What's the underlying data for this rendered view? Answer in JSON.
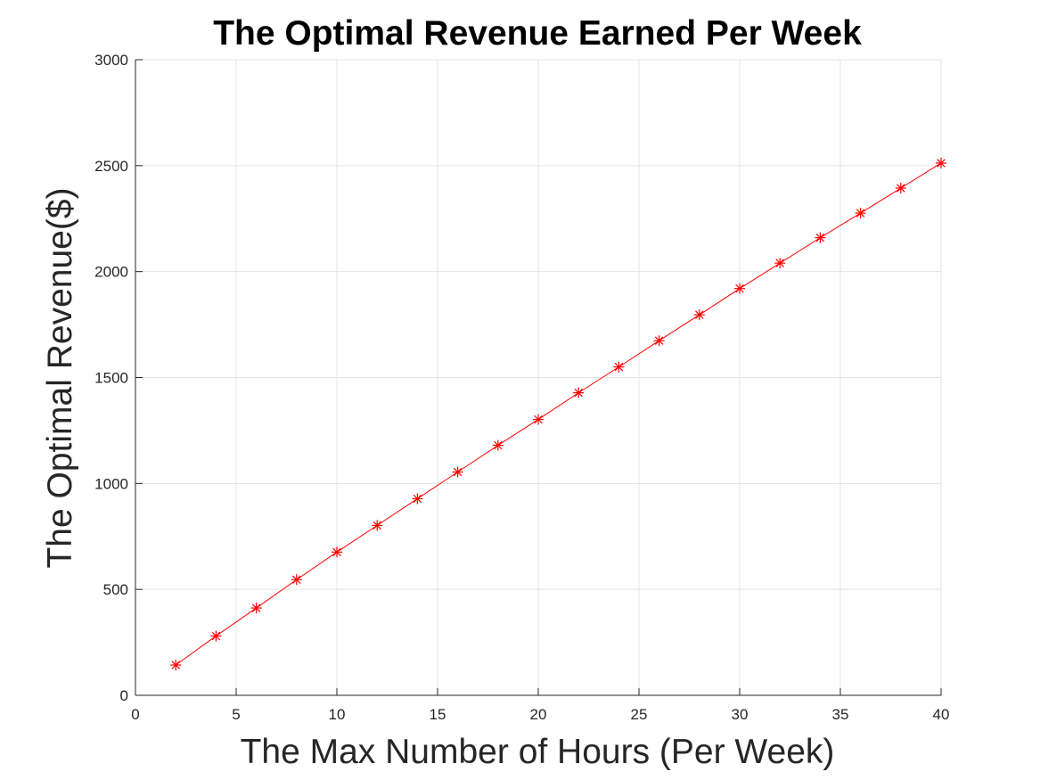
{
  "chart_data": {
    "type": "line",
    "title": "The Optimal Revenue Earned Per Week",
    "xlabel": "The Max Number of Hours (Per Week)",
    "ylabel": "The Optimal Revenue($)",
    "xlim": [
      0,
      40
    ],
    "ylim": [
      0,
      3000
    ],
    "xticks": [
      0,
      5,
      10,
      15,
      20,
      25,
      30,
      35,
      40
    ],
    "yticks": [
      0,
      500,
      1000,
      1500,
      2000,
      2500,
      3000
    ],
    "xtick_labels": [
      "0",
      "5",
      "10",
      "15",
      "20",
      "25",
      "30",
      "35",
      "40"
    ],
    "ytick_labels": [
      "0",
      "500",
      "1000",
      "1500",
      "2000",
      "2500",
      "3000"
    ],
    "grid": true,
    "marker": "asterisk",
    "series": [
      {
        "color": "#ff0000",
        "x": [
          2,
          4,
          6,
          8,
          10,
          12,
          14,
          16,
          18,
          20,
          22,
          24,
          26,
          28,
          30,
          32,
          34,
          36,
          38,
          40
        ],
        "y": [
          143,
          280,
          412,
          546,
          676,
          802,
          928,
          1054,
          1180,
          1302,
          1428,
          1550,
          1674,
          1796,
          1920,
          2040,
          2160,
          2276,
          2394,
          2512
        ]
      }
    ]
  }
}
